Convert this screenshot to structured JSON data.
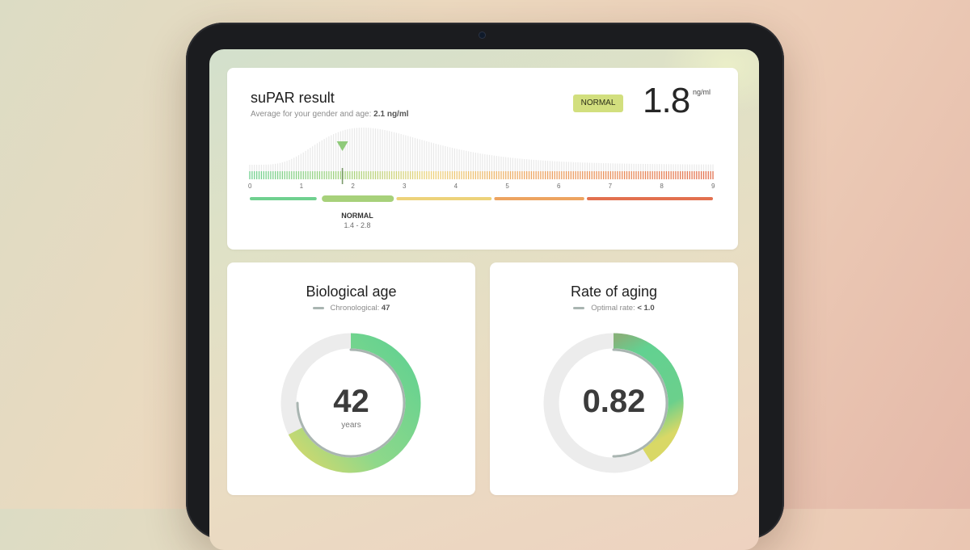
{
  "supar": {
    "title": "suPAR result",
    "subtitle_prefix": "Average for your gender and age:",
    "subtitle_value": "2.1 ng/ml",
    "badge": "NORMAL",
    "value": "1.8",
    "unit": "ng/ml",
    "scale_ticks": [
      "0",
      "1",
      "2",
      "3",
      "4",
      "5",
      "6",
      "7",
      "8",
      "9"
    ],
    "result_value": 1.8,
    "scale_max": 9,
    "segments": [
      {
        "from": 0,
        "to": 1.3,
        "color": "#6fd08f"
      },
      {
        "from": 1.4,
        "to": 2.8,
        "color": "#a7d17a"
      },
      {
        "from": 2.85,
        "to": 4.7,
        "color": "#edd27a"
      },
      {
        "from": 4.75,
        "to": 6.5,
        "color": "#eda460"
      },
      {
        "from": 6.55,
        "to": 9,
        "color": "#e2704f"
      }
    ],
    "range_label": "NORMAL",
    "range_value": "1.4 - 2.8"
  },
  "biological_age": {
    "title": "Biological age",
    "legend_label": "Chronological:",
    "legend_value": "47",
    "value": "42",
    "unit": "years",
    "value_num": 42,
    "chronological_num": 47
  },
  "rate_of_aging": {
    "title": "Rate of aging",
    "legend_label": "Optimal rate:",
    "legend_value": "< 1.0",
    "value": "0.82",
    "value_num": 0.82
  },
  "colors": {
    "green": "#6fd08f",
    "lime": "#d2df7e",
    "orange": "#eda460",
    "red": "#e2704f",
    "track": "#ececec",
    "chrono_line": "#a9b5b1"
  }
}
